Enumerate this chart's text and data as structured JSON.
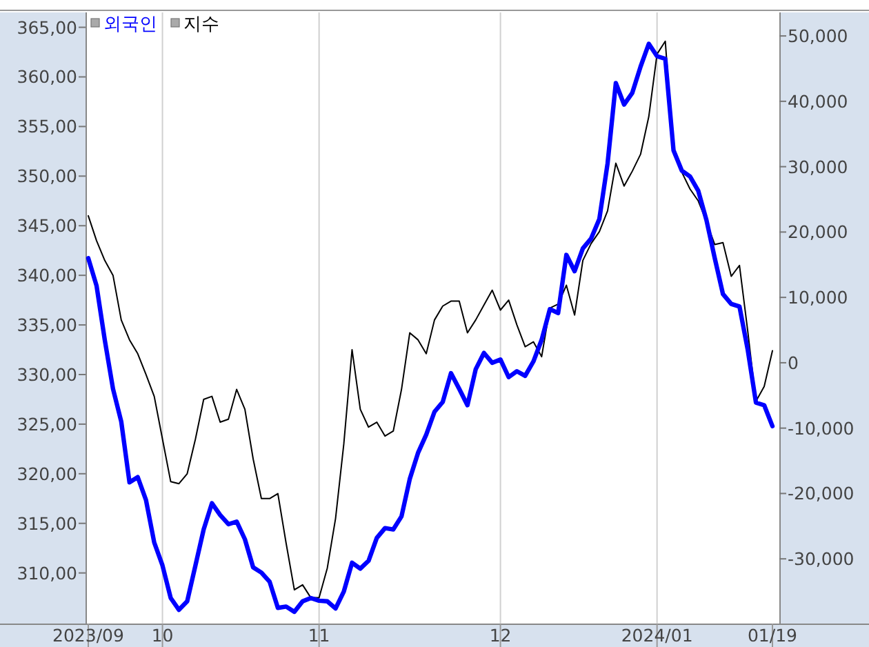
{
  "chart_data": {
    "type": "line",
    "categories": [
      "2023/09",
      null,
      null,
      null,
      null,
      null,
      null,
      null,
      null,
      "10",
      null,
      null,
      null,
      null,
      null,
      null,
      null,
      null,
      null,
      null,
      null,
      null,
      null,
      null,
      null,
      null,
      null,
      null,
      "11",
      null,
      null,
      null,
      null,
      null,
      null,
      null,
      null,
      null,
      null,
      null,
      null,
      null,
      null,
      null,
      null,
      null,
      null,
      null,
      null,
      null,
      "12",
      null,
      null,
      null,
      null,
      null,
      null,
      null,
      null,
      null,
      null,
      null,
      null,
      null,
      null,
      null,
      null,
      null,
      null,
      "2024/01",
      null,
      null,
      null,
      null,
      null,
      null,
      null,
      null,
      null,
      null,
      null,
      null,
      null,
      "01/19"
    ],
    "series": [
      {
        "name": "외국인",
        "color": "#0000ff",
        "axis": "y2",
        "values": [
          16000,
          11800,
          3500,
          -4000,
          -9000,
          -18300,
          -17500,
          -21000,
          -27500,
          -31000,
          -36000,
          -37800,
          -36500,
          -31000,
          -25500,
          -21500,
          -23300,
          -24700,
          -24300,
          -27000,
          -31300,
          -32100,
          -33500,
          -37500,
          -37300,
          -38100,
          -36500,
          -36000,
          -36400,
          -36500,
          -37600,
          -35000,
          -30600,
          -31500,
          -30300,
          -26800,
          -25300,
          -25500,
          -23500,
          -17800,
          -13800,
          -11000,
          -7500,
          -6000,
          -1600,
          -4000,
          -6500,
          -1000,
          1500,
          0,
          500,
          -2200,
          -1300,
          -2000,
          200,
          3500,
          8200,
          7600,
          16500,
          14000,
          17500,
          19000,
          22000,
          30500,
          42800,
          39500,
          41300,
          45300,
          48800,
          46900,
          46500,
          32500,
          29400,
          28500,
          26300,
          21800,
          16000,
          10500,
          9000,
          8600,
          2000,
          -6100,
          -6500,
          -9700
        ]
      },
      {
        "name": "지수",
        "color": "#000000",
        "values": [
          346.0,
          343.5,
          341.5,
          340.0,
          335.5,
          333.5,
          332.1,
          330.0,
          327.8,
          323.5,
          319.2,
          319.0,
          320.0,
          323.5,
          327.5,
          327.8,
          325.2,
          325.5,
          328.5,
          326.5,
          321.5,
          317.5,
          317.5,
          318.0,
          313.0,
          308.3,
          308.8,
          307.5,
          307.5,
          310.5,
          315.5,
          323.0,
          332.5,
          326.5,
          324.7,
          325.2,
          323.8,
          324.3,
          328.5,
          334.2,
          333.5,
          332.1,
          335.5,
          336.9,
          337.4,
          337.4,
          334.2,
          335.5,
          337.0,
          338.5,
          336.5,
          337.5,
          335.0,
          332.8,
          333.3,
          331.8,
          336.7,
          337.1,
          339.0,
          336.0,
          341.5,
          343.2,
          344.4,
          346.5,
          351.3,
          349.0,
          350.5,
          352.2,
          356.0,
          362.3,
          363.6,
          352.3,
          350.4,
          348.7,
          347.5,
          345.4,
          343.1,
          343.3,
          339.9,
          341.0,
          334.4,
          327.3,
          328.8,
          332.4
        ]
      }
    ],
    "ylim": [
      304.9,
      366.5
    ],
    "yticks": [
      {
        "value": 310,
        "label": "310,00"
      },
      {
        "value": 315,
        "label": "315,00"
      },
      {
        "value": 320,
        "label": "320,00"
      },
      {
        "value": 325,
        "label": "325,00"
      },
      {
        "value": 330,
        "label": "330,00"
      },
      {
        "value": 335,
        "label": "335,00"
      },
      {
        "value": 340,
        "label": "340,00"
      },
      {
        "value": 345,
        "label": "345,00"
      },
      {
        "value": 350,
        "label": "350,00"
      },
      {
        "value": 355,
        "label": "355,00"
      },
      {
        "value": 360,
        "label": "360,00"
      },
      {
        "value": 365,
        "label": "365,00"
      }
    ],
    "y2lim": [
      -39900,
      53600
    ],
    "y2ticks": [
      {
        "value": -30000,
        "label": "-30,000"
      },
      {
        "value": -20000,
        "label": "-20,000"
      },
      {
        "value": -10000,
        "label": "-10,000"
      },
      0,
      {
        "value": 10000,
        "label": "10,000"
      },
      {
        "value": 20000,
        "label": "20,000"
      },
      {
        "value": 30000,
        "label": "30,000"
      },
      {
        "value": 40000,
        "label": "40,000"
      },
      {
        "value": 50000,
        "label": "50,000"
      }
    ],
    "grid": "x",
    "legend": "top left"
  }
}
